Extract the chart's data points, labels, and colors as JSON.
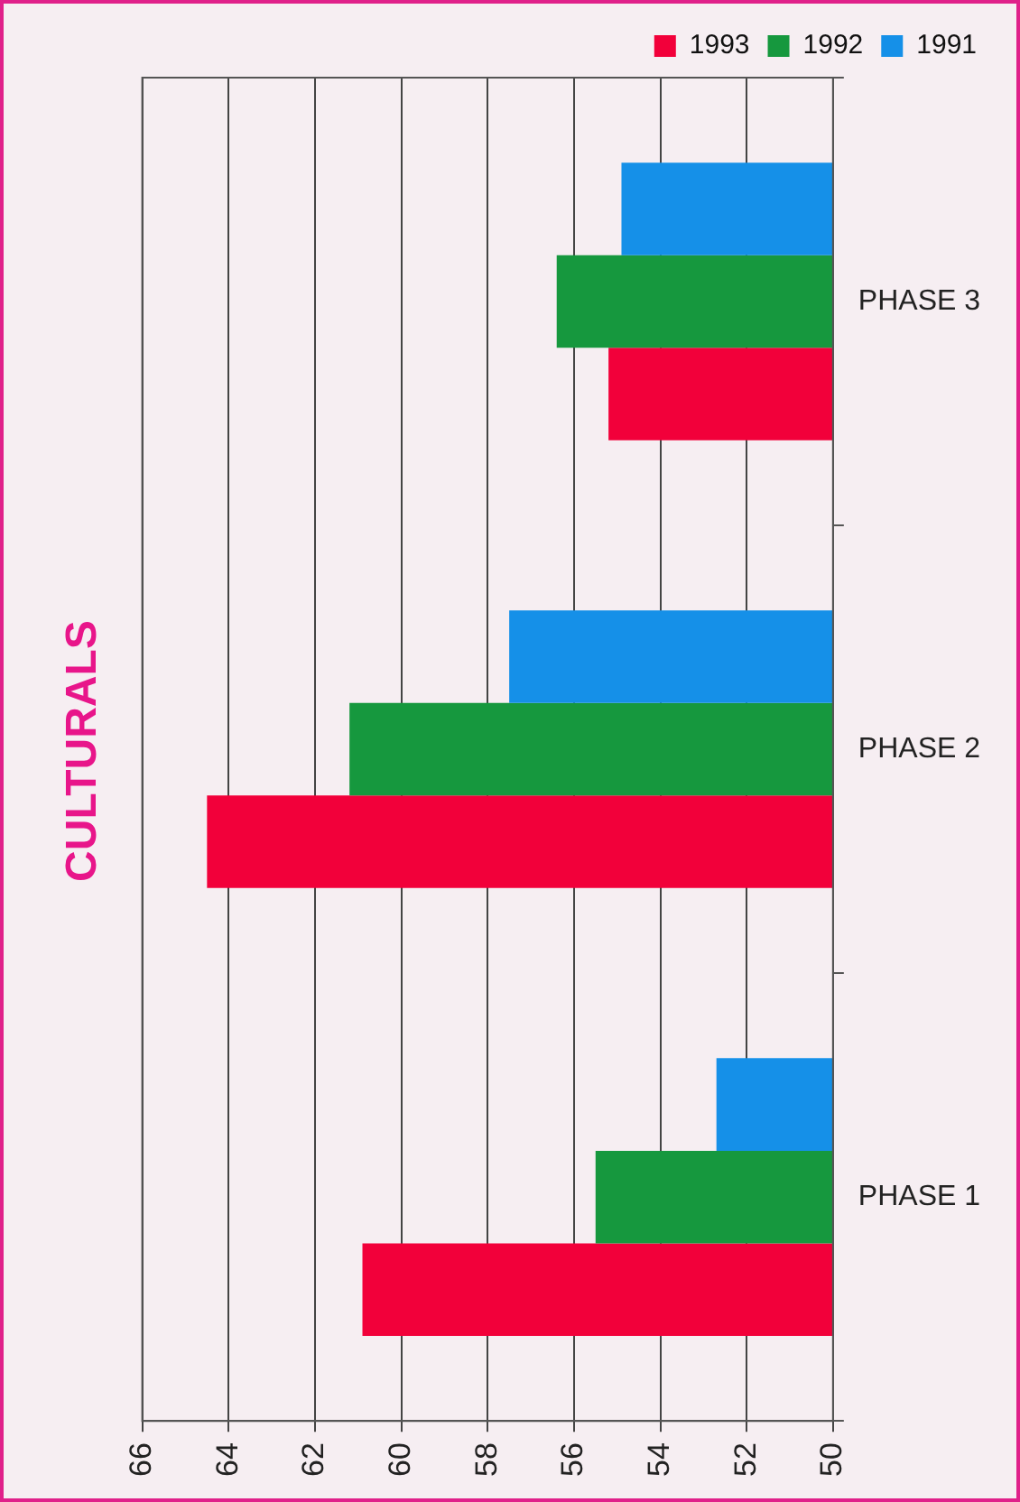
{
  "chart_data": {
    "type": "bar",
    "orientation": "horizontal",
    "title": "CULTURALS",
    "categories": [
      "PHASE 3",
      "PHASE 2",
      "PHASE 1"
    ],
    "series": [
      {
        "name": "1991",
        "color": "#1590e8",
        "values": [
          54.9,
          57.5,
          52.7
        ]
      },
      {
        "name": "1992",
        "color": "#16983e",
        "values": [
          56.4,
          61.2,
          55.5
        ]
      },
      {
        "name": "1993",
        "color": "#f2003a",
        "values": [
          55.2,
          64.5,
          60.9
        ]
      }
    ],
    "xlim": [
      66,
      50
    ],
    "xticks": [
      66,
      64,
      62,
      60,
      58,
      56,
      54,
      52,
      50
    ],
    "grid": "x",
    "legend": "top right"
  }
}
